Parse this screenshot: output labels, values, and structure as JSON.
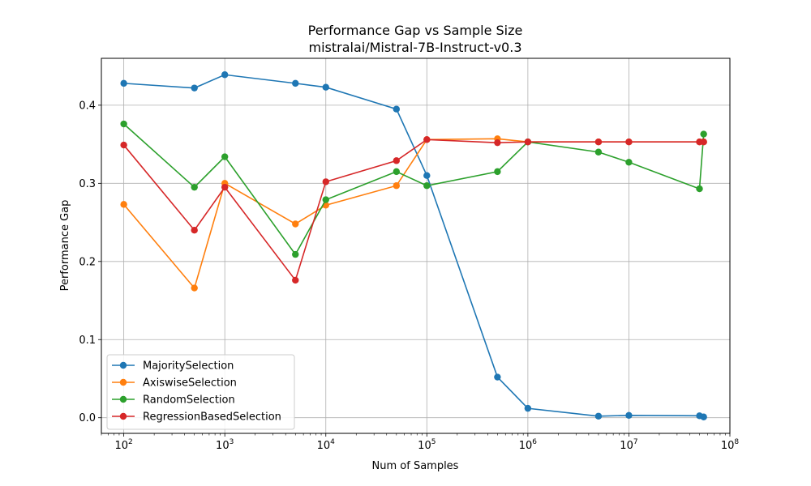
{
  "chart_data": {
    "type": "line",
    "title": "Performance Gap vs Sample Size",
    "subtitle": "mistralai/Mistral-7B-Instruct-v0.3",
    "xlabel": "Num of Samples",
    "ylabel": "Performance Gap",
    "xscale": "log",
    "xlim": [
      60,
      100000000
    ],
    "ylim": [
      -0.02,
      0.46
    ],
    "grid": true,
    "legend_position": "lower-left",
    "x_ticks": [
      {
        "value": 100,
        "base": "10",
        "exp": "2"
      },
      {
        "value": 1000,
        "base": "10",
        "exp": "3"
      },
      {
        "value": 10000,
        "base": "10",
        "exp": "4"
      },
      {
        "value": 100000,
        "base": "10",
        "exp": "5"
      },
      {
        "value": 1000000,
        "base": "10",
        "exp": "6"
      },
      {
        "value": 10000000,
        "base": "10",
        "exp": "7"
      },
      {
        "value": 100000000,
        "base": "10",
        "exp": "8"
      }
    ],
    "y_ticks": [
      {
        "value": 0.0,
        "label": "0.0"
      },
      {
        "value": 0.1,
        "label": "0.1"
      },
      {
        "value": 0.2,
        "label": "0.2"
      },
      {
        "value": 0.3,
        "label": "0.3"
      },
      {
        "value": 0.4,
        "label": "0.4"
      }
    ],
    "x": [
      100,
      500,
      1000,
      5000,
      10000,
      50000,
      100000,
      500000,
      1000000,
      5000000,
      10000000,
      50000000,
      55000000
    ],
    "series": [
      {
        "name": "MajoritySelection",
        "color": "#1f77b4",
        "values": [
          0.428,
          0.422,
          0.439,
          0.428,
          0.423,
          0.395,
          0.31,
          0.052,
          0.012,
          0.002,
          0.003,
          0.0025,
          0.001
        ]
      },
      {
        "name": "AxiswiseSelection",
        "color": "#ff7f0e",
        "values": [
          0.273,
          0.166,
          0.3,
          0.248,
          0.272,
          0.297,
          0.356,
          0.357,
          0.353,
          0.353,
          0.353,
          0.353,
          0.353
        ]
      },
      {
        "name": "RandomSelection",
        "color": "#2ca02c",
        "values": [
          0.376,
          0.295,
          0.334,
          0.209,
          0.279,
          0.315,
          0.297,
          0.315,
          0.353,
          0.34,
          0.327,
          0.293,
          0.363
        ]
      },
      {
        "name": "RegressionBasedSelection",
        "color": "#d62728",
        "values": [
          0.349,
          0.24,
          0.295,
          0.176,
          0.302,
          0.329,
          0.356,
          0.352,
          0.353,
          0.353,
          0.353,
          0.353,
          0.353
        ]
      }
    ]
  }
}
